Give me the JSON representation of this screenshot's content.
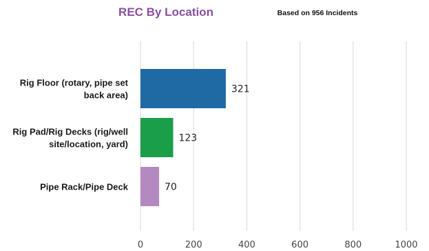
{
  "chart_data": {
    "type": "bar",
    "orientation": "horizontal",
    "title": "REC By Location",
    "subtitle": "Based on 956 Incidents",
    "categories": [
      "Rig Floor (rotary, pipe set back area)",
      "Rig Pad/Rig Decks (rig/well site/location, yard)",
      "Pipe Rack/Pipe Deck"
    ],
    "category_lines": [
      [
        "Rig Floor (rotary, pipe set",
        "back area)"
      ],
      [
        "Rig Pad/Rig Decks (rig/well",
        "site/location, yard)"
      ],
      [
        "Pipe Rack/Pipe Deck"
      ]
    ],
    "values": [
      321,
      123,
      70
    ],
    "data_labels": [
      "321",
      "123",
      "70"
    ],
    "bar_colors": [
      "#1f6aa5",
      "#1a9e4a",
      "#b389c0"
    ],
    "xlim": [
      0,
      1000
    ],
    "x_ticks": [
      0,
      200,
      400,
      600,
      800,
      1000
    ],
    "grid": true,
    "legend": "none"
  }
}
